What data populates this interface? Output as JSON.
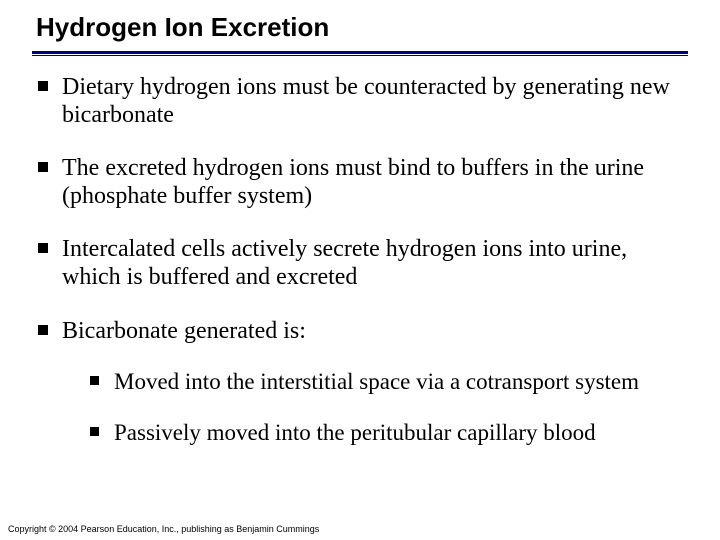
{
  "slide": {
    "title": "Hydrogen Ion Excretion",
    "title_font_family": "Arial",
    "title_font_weight": "bold",
    "title_fontsize_pt": 20,
    "title_color": "#000000",
    "rule_color": "#000080",
    "body_font_family": "Times New Roman",
    "body_fontsize_pt": 18,
    "bullet_marker": "square",
    "bullet_color": "#000000",
    "background_color": "#ffffff",
    "bullets": [
      {
        "text": "Dietary hydrogen ions must be counteracted by generating new bicarbonate"
      },
      {
        "text": "The excreted hydrogen ions must bind to buffers in the urine (phosphate buffer system)"
      },
      {
        "text": "Intercalated cells actively secrete hydrogen ions into urine, which is buffered and excreted"
      },
      {
        "text": "Bicarbonate generated is:",
        "children": [
          {
            "text": "Moved into the interstitial space via a cotransport system"
          },
          {
            "text": "Passively moved into the peritubular capillary blood"
          }
        ]
      }
    ],
    "copyright": "Copyright © 2004 Pearson Education, Inc., publishing as Benjamin Cummings"
  }
}
